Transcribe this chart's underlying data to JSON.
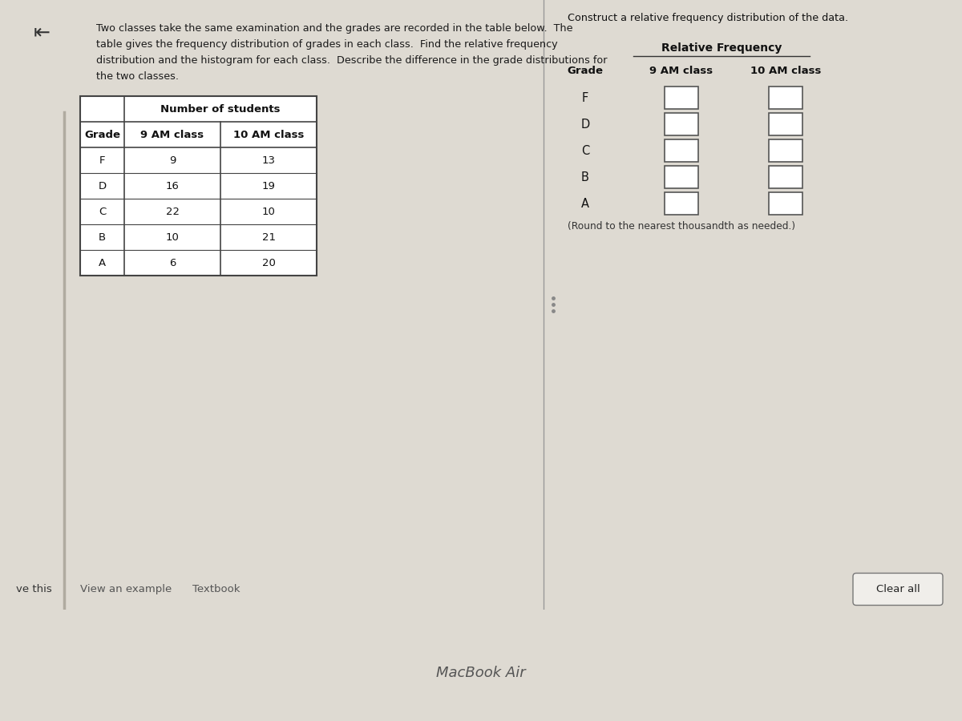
{
  "problem_text_line1": "Two classes take the same examination and the grades are recorded in the table below.  The",
  "problem_text_line2": "table gives the frequency distribution of grades in each class.  Find the relative frequency",
  "problem_text_line3": "distribution and the histogram for each class.  Describe the difference in the grade distributions for",
  "problem_text_line4": "the two classes.",
  "grades": [
    "F",
    "D",
    "C",
    "B",
    "A"
  ],
  "am9_counts": [
    9,
    16,
    22,
    10,
    6
  ],
  "am10_counts": [
    13,
    19,
    10,
    21,
    20
  ],
  "left_table_header": "Number of students",
  "left_col1": "Grade",
  "left_col2": "9 AM class",
  "left_col3": "10 AM class",
  "right_title": "Construct a relative frequency distribution of the data.",
  "right_header": "Relative Frequency",
  "right_col1": "Grade",
  "right_col2": "9 AM class",
  "right_col3": "10 AM class",
  "note": "(Round to the nearest thousandth as needed.)",
  "back_arrow": "⇤",
  "bottom_left_text": "ve this",
  "view_example": "View an example",
  "textbook": "Textbook",
  "clear_all": "Clear all",
  "macbook_text": "MacBook Air",
  "bg_color_screen": "#dedad2",
  "bg_color_white": "#f0eeea",
  "bg_color_bottom_bar": "#3a3a3a",
  "bg_color_macbook": "#2a2828"
}
